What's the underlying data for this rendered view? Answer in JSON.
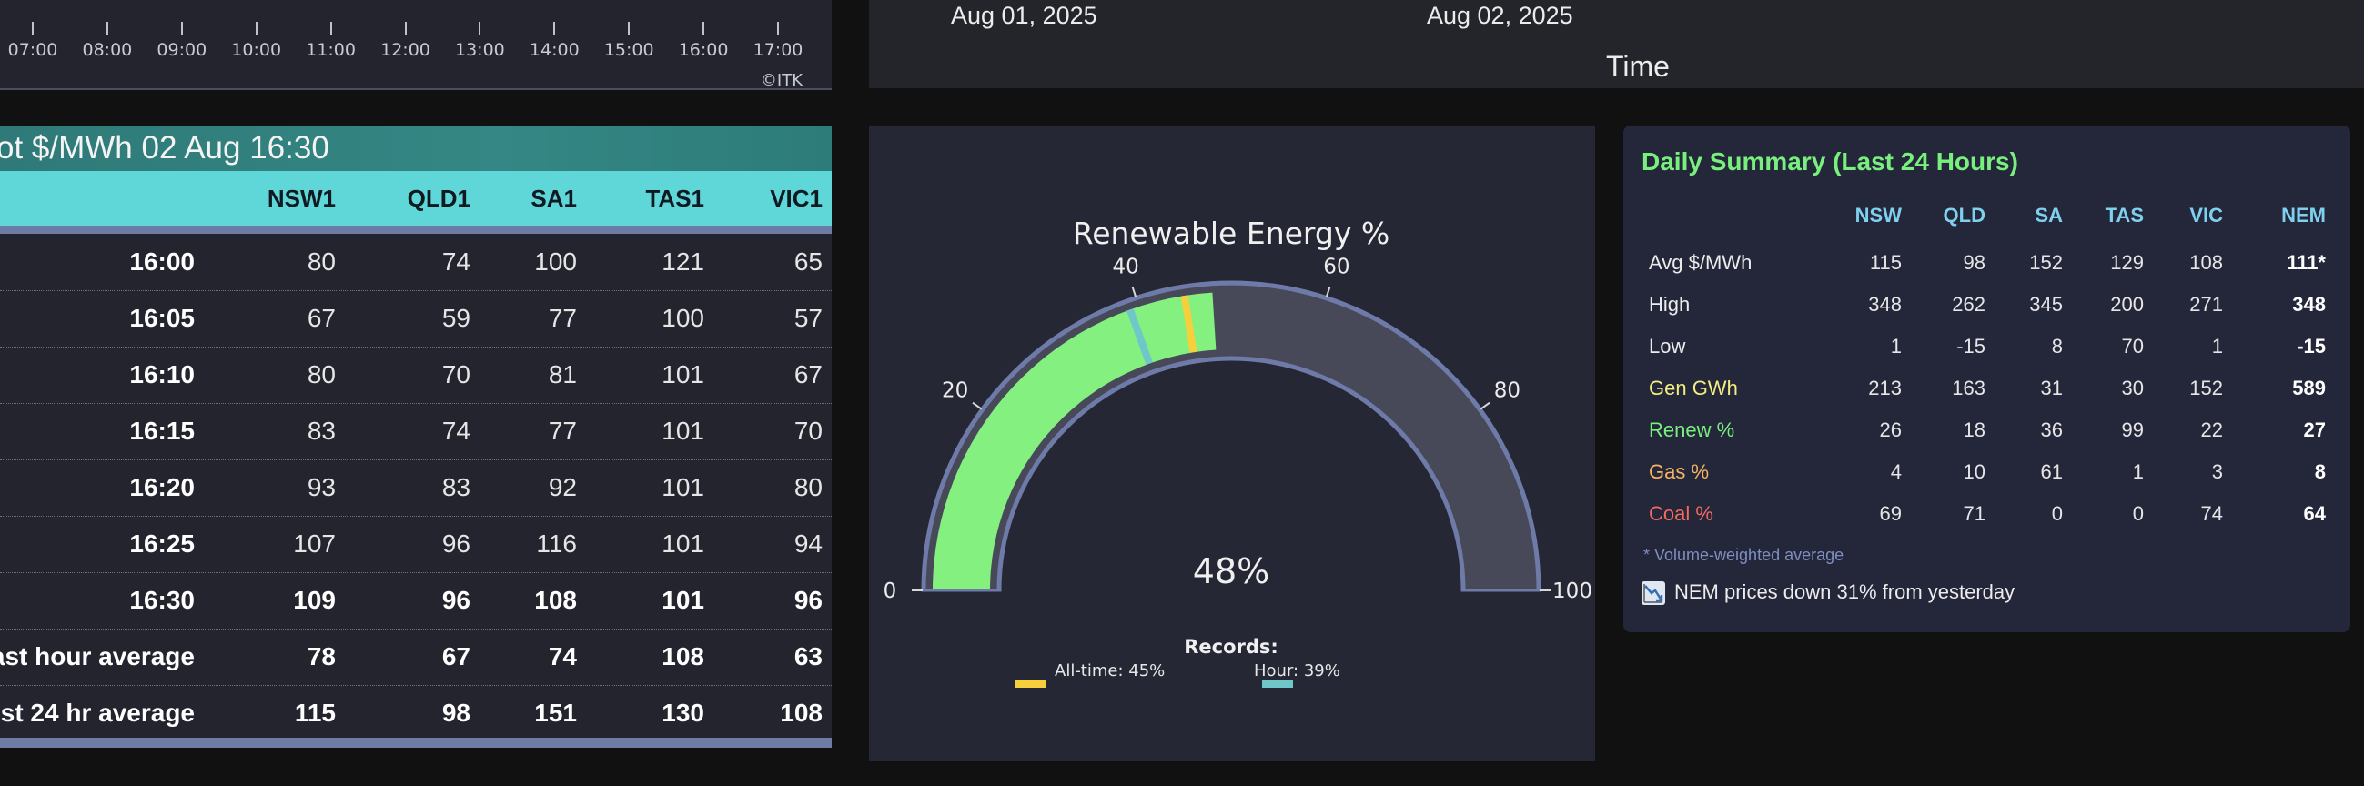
{
  "time_axis": {
    "ticks": [
      "07:00",
      "08:00",
      "09:00",
      "10:00",
      "11:00",
      "12:00",
      "13:00",
      "14:00",
      "15:00",
      "16:00",
      "17:00"
    ],
    "copyright": "©ITK"
  },
  "date_axis": {
    "dates": [
      "Aug 01, 2025",
      "Aug 02, 2025"
    ],
    "title": "Time"
  },
  "price_table": {
    "title": "ot $/MWh 02 Aug 16:30",
    "columns": [
      "NSW1",
      "QLD1",
      "SA1",
      "TAS1",
      "VIC1"
    ],
    "rows": [
      {
        "label": "16:00",
        "values": [
          "80",
          "74",
          "100",
          "121",
          "65"
        ],
        "bold": false
      },
      {
        "label": "16:05",
        "values": [
          "67",
          "59",
          "77",
          "100",
          "57"
        ],
        "bold": false
      },
      {
        "label": "16:10",
        "values": [
          "80",
          "70",
          "81",
          "101",
          "67"
        ],
        "bold": false
      },
      {
        "label": "16:15",
        "values": [
          "83",
          "74",
          "77",
          "101",
          "70"
        ],
        "bold": false
      },
      {
        "label": "16:20",
        "values": [
          "93",
          "83",
          "92",
          "101",
          "80"
        ],
        "bold": false
      },
      {
        "label": "16:25",
        "values": [
          "107",
          "96",
          "116",
          "101",
          "94"
        ],
        "bold": false
      },
      {
        "label": "16:30",
        "values": [
          "109",
          "96",
          "108",
          "101",
          "96"
        ],
        "bold": true
      },
      {
        "label": "ast hour average",
        "values": [
          "78",
          "67",
          "74",
          "108",
          "63"
        ],
        "bold": true
      },
      {
        "label": "st 24 hr average",
        "values": [
          "115",
          "98",
          "151",
          "130",
          "108"
        ],
        "bold": true
      }
    ]
  },
  "gauge": {
    "title": "Renewable Energy %",
    "value": 48,
    "value_text": "48%",
    "min": 0,
    "max": 100,
    "ticks": [
      "0",
      "20",
      "40",
      "60",
      "80",
      "100"
    ],
    "records_label": "Records:",
    "alltime_label": "All-time: 45%",
    "alltime_value": 45,
    "hour_label": "Hour: 39%",
    "hour_value": 39,
    "colors": {
      "fill": "#84f07f",
      "track": "#474959",
      "alltime": "#f5cf3c",
      "hour": "#6fc7c9"
    }
  },
  "summary": {
    "title": "Daily Summary (Last 24 Hours)",
    "columns": [
      "NSW",
      "QLD",
      "SA",
      "TAS",
      "VIC",
      "NEM"
    ],
    "rows": [
      {
        "label": "Avg $/MWh",
        "color": "#ececec",
        "values": [
          "115",
          "98",
          "152",
          "129",
          "108",
          "111*"
        ]
      },
      {
        "label": "High",
        "color": "#ececec",
        "values": [
          "348",
          "262",
          "345",
          "200",
          "271",
          "348"
        ]
      },
      {
        "label": "Low",
        "color": "#ececec",
        "values": [
          "1",
          "-15",
          "8",
          "70",
          "1",
          "-15"
        ]
      },
      {
        "label": "Gen GWh",
        "color": "#f2ee82",
        "values": [
          "213",
          "163",
          "31",
          "30",
          "152",
          "589"
        ]
      },
      {
        "label": "Renew %",
        "color": "#79f07e",
        "values": [
          "26",
          "18",
          "36",
          "99",
          "22",
          "27"
        ]
      },
      {
        "label": "Gas %",
        "color": "#f5b562",
        "values": [
          "4",
          "10",
          "61",
          "1",
          "3",
          "8"
        ]
      },
      {
        "label": "Coal %",
        "color": "#f26a5e",
        "values": [
          "69",
          "71",
          "0",
          "0",
          "74",
          "64"
        ]
      }
    ],
    "note": "* Volume-weighted average",
    "trend_icon": "chart-down-icon",
    "trend_text": "NEM prices down 31% from yesterday"
  }
}
